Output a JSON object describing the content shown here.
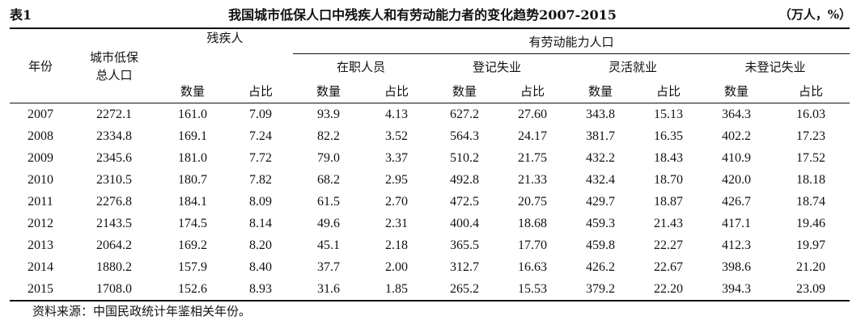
{
  "caption": {
    "label": "表1",
    "title": "我国城市低保人口中残疾人和有劳动能力者的变化趋势2007-2015",
    "unit": "（万人，%）"
  },
  "headers": {
    "year": "年份",
    "total_line1": "城市低保",
    "total_line2": "总人口",
    "disabled": "残疾人",
    "able_group": "有劳动能力人口",
    "employed": "在职人员",
    "registered_unemployed": "登记失业",
    "flexible": "灵活就业",
    "unregistered_unemployed": "未登记失业",
    "count": "数量",
    "share": "占比"
  },
  "rows": [
    [
      "2007",
      "2272.1",
      "161.0",
      "7.09",
      "93.9",
      "4.13",
      "627.2",
      "27.60",
      "343.8",
      "15.13",
      "364.3",
      "16.03"
    ],
    [
      "2008",
      "2334.8",
      "169.1",
      "7.24",
      "82.2",
      "3.52",
      "564.3",
      "24.17",
      "381.7",
      "16.35",
      "402.2",
      "17.23"
    ],
    [
      "2009",
      "2345.6",
      "181.0",
      "7.72",
      "79.0",
      "3.37",
      "510.2",
      "21.75",
      "432.2",
      "18.43",
      "410.9",
      "17.52"
    ],
    [
      "2010",
      "2310.5",
      "180.7",
      "7.82",
      "68.2",
      "2.95",
      "492.8",
      "21.33",
      "432.4",
      "18.70",
      "420.0",
      "18.18"
    ],
    [
      "2011",
      "2276.8",
      "184.1",
      "8.09",
      "61.5",
      "2.70",
      "472.5",
      "20.75",
      "429.7",
      "18.87",
      "426.7",
      "18.74"
    ],
    [
      "2012",
      "2143.5",
      "174.5",
      "8.14",
      "49.6",
      "2.31",
      "400.4",
      "18.68",
      "459.3",
      "21.43",
      "417.1",
      "19.46"
    ],
    [
      "2013",
      "2064.2",
      "169.2",
      "8.20",
      "45.1",
      "2.18",
      "365.5",
      "17.70",
      "459.8",
      "22.27",
      "412.3",
      "19.97"
    ],
    [
      "2014",
      "1880.2",
      "157.9",
      "8.40",
      "37.7",
      "2.00",
      "312.7",
      "16.63",
      "426.2",
      "22.67",
      "398.6",
      "21.20"
    ],
    [
      "2015",
      "1708.0",
      "152.6",
      "8.93",
      "31.6",
      "1.85",
      "265.2",
      "15.53",
      "379.2",
      "22.20",
      "394.3",
      "23.09"
    ]
  ],
  "footnote": "资料来源：中国民政统计年鉴相关年份。"
}
